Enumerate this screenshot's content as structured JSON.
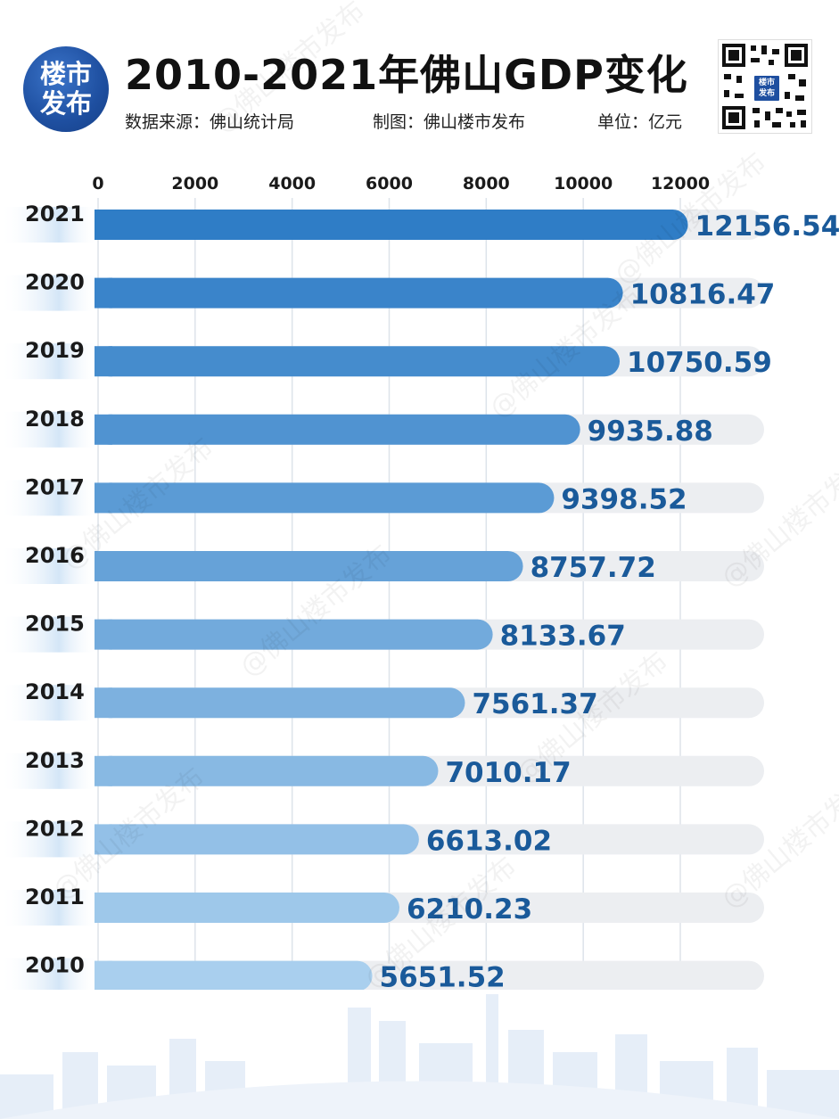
{
  "header": {
    "logo_line1": "楼市",
    "logo_line2": "发布",
    "title": "2010-2021年佛山GDP变化",
    "source": "数据来源：佛山统计局",
    "maker": "制图：佛山楼市发布",
    "unit": "单位：亿元",
    "qr_badge_line1": "楼市",
    "qr_badge_line2": "发布"
  },
  "watermark": "@佛山楼市发布",
  "colors": {
    "bar_dark": "#2f7dc6",
    "bar_light": "#a9cfee",
    "track": "#eceef1",
    "value_text": "#1a5a9a"
  },
  "chart_data": {
    "type": "bar",
    "orientation": "horizontal",
    "title": "2010-2021年佛山GDP变化",
    "ylabel": "",
    "xlabel": "",
    "unit": "亿元",
    "xlim": [
      0,
      12000
    ],
    "x_ticks": [
      0,
      2000,
      4000,
      6000,
      8000,
      10000,
      12000
    ],
    "x_tick_labels": [
      "0",
      "2000",
      "4000",
      "6000",
      "8000",
      "10000",
      "12000"
    ],
    "categories": [
      "2021",
      "2020",
      "2019",
      "2018",
      "2017",
      "2016",
      "2015",
      "2014",
      "2013",
      "2012",
      "2011",
      "2010"
    ],
    "values": [
      12156.54,
      10816.47,
      10750.59,
      9935.88,
      9398.52,
      8757.72,
      8133.67,
      7561.37,
      7010.17,
      6613.02,
      6210.23,
      5651.52
    ],
    "value_labels": [
      "12156.54",
      "10816.47",
      "10750.59",
      "9935.88",
      "9398.52",
      "8757.72",
      "8133.67",
      "7561.37",
      "7010.17",
      "6613.02",
      "6210.23",
      "5651.52"
    ],
    "grid": true,
    "legend": "none"
  }
}
